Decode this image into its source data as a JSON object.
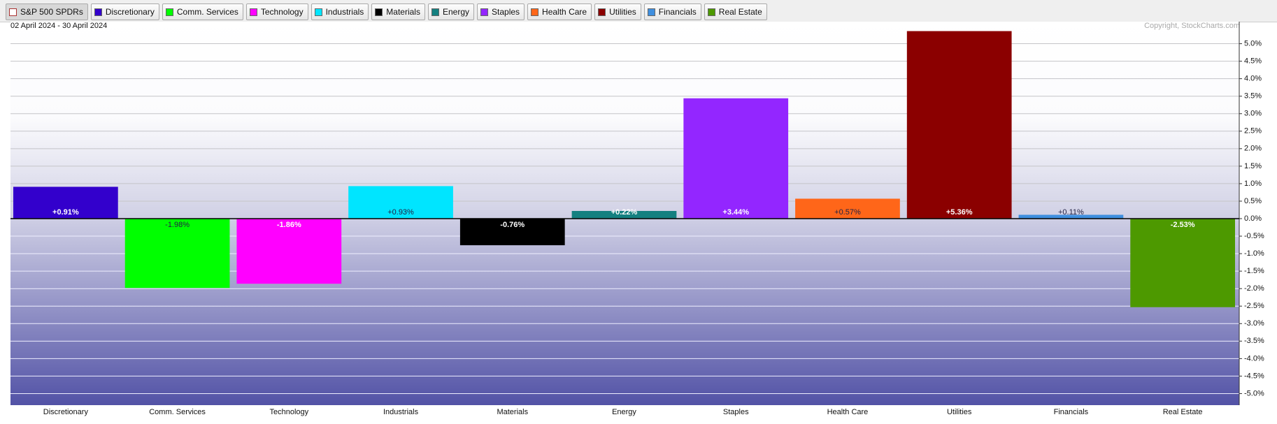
{
  "chart_data": {
    "type": "bar",
    "group_label": "S&P 500 SPDRs",
    "subtitle": "02 April 2024 - 30 April 2024",
    "source": "Copyright, StockCharts.com",
    "categories": [
      "Discretionary",
      "Comm. Services",
      "Technology",
      "Industrials",
      "Materials",
      "Energy",
      "Staples",
      "Health Care",
      "Utilities",
      "Financials",
      "Real Estate"
    ],
    "values": [
      0.91,
      -1.98,
      -1.86,
      0.93,
      -0.76,
      0.22,
      3.44,
      0.57,
      5.36,
      0.11,
      -2.53
    ],
    "value_labels": [
      "+0.91%",
      "-1.98%",
      "-1.86%",
      "+0.93%",
      "-0.76%",
      "+0.22%",
      "+3.44%",
      "+0.57%",
      "+5.36%",
      "+0.11%",
      "-2.53%"
    ],
    "colors": [
      "#3300cc",
      "#00ff00",
      "#ff00ff",
      "#00e5ff",
      "#000000",
      "#148080",
      "#9326ff",
      "#ff6619",
      "#8b0000",
      "#3f8fdf",
      "#4d9900"
    ],
    "ylim": [
      -5.33,
      5.63
    ],
    "yticks": [
      {
        "value": 5.0,
        "label": "5.0%"
      },
      {
        "value": 4.5,
        "label": "4.5%"
      },
      {
        "value": 4.0,
        "label": "4.0%"
      },
      {
        "value": 3.5,
        "label": "3.5%"
      },
      {
        "value": 3.0,
        "label": "3.0%"
      },
      {
        "value": 2.5,
        "label": "2.5%"
      },
      {
        "value": 2.0,
        "label": "2.0%"
      },
      {
        "value": 1.5,
        "label": "1.5%"
      },
      {
        "value": 1.0,
        "label": "1.0%"
      },
      {
        "value": 0.5,
        "label": "0.5%"
      },
      {
        "value": 0.0,
        "label": "0.0%"
      },
      {
        "value": -0.5,
        "label": "-0.5%"
      },
      {
        "value": -1.0,
        "label": "-1.0%"
      },
      {
        "value": -1.5,
        "label": "-1.5%"
      },
      {
        "value": -2.0,
        "label": "-2.0%"
      },
      {
        "value": -2.5,
        "label": "-2.5%"
      },
      {
        "value": -3.0,
        "label": "-3.0%"
      },
      {
        "value": -3.5,
        "label": "-3.5%"
      },
      {
        "value": -4.0,
        "label": "-4.0%"
      },
      {
        "value": -4.5,
        "label": "-4.5%"
      },
      {
        "value": -5.0,
        "label": "-5.0%"
      }
    ],
    "grid": true
  }
}
